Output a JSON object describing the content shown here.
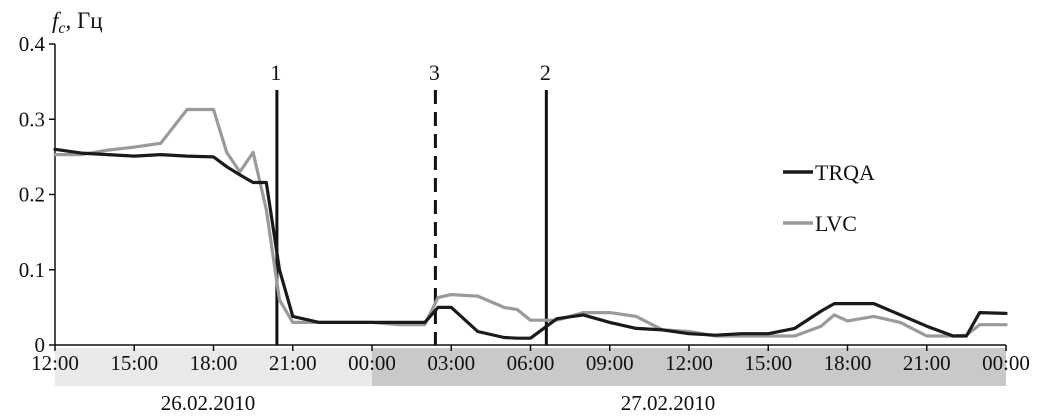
{
  "chart_data": {
    "type": "line",
    "ylabel_symbol": "f",
    "ylabel_sub": "c",
    "ylabel_unit": ", Гц",
    "ylim": [
      0,
      0.4
    ],
    "y_ticks": [
      "0",
      "0.1",
      "0.2",
      "0.3",
      "0.4"
    ],
    "x_ticks": [
      "12:00",
      "15:00",
      "18:00",
      "21:00",
      "00:00",
      "03:00",
      "06:00",
      "09:00",
      "12:00",
      "15:00",
      "18:00",
      "21:00",
      "00:00"
    ],
    "x_range_hours": [
      0,
      36
    ],
    "dates": [
      {
        "label": "26.02.2010",
        "start_h": 0,
        "end_h": 12
      },
      {
        "label": "27.02.2010",
        "start_h": 12,
        "end_h": 36
      }
    ],
    "markers": [
      {
        "label": "1",
        "x_h": 8.4,
        "style": "solid"
      },
      {
        "label": "3",
        "x_h": 14.4,
        "style": "dashed"
      },
      {
        "label": "2",
        "x_h": 18.6,
        "style": "solid"
      }
    ],
    "series": [
      {
        "name": "TRQA",
        "color": "#1a1a1a",
        "x": [
          0,
          1,
          2,
          3,
          4,
          5,
          6,
          6.5,
          7,
          7.5,
          8,
          8.5,
          9,
          10,
          11,
          12,
          13,
          14,
          14.5,
          15,
          16,
          17,
          17.5,
          18,
          19,
          20,
          21,
          22,
          23,
          24,
          25,
          26,
          27,
          28,
          29,
          29.5,
          30,
          31,
          32,
          33,
          34,
          34.5,
          35,
          36
        ],
        "y": [
          0.26,
          0.255,
          0.253,
          0.251,
          0.253,
          0.251,
          0.25,
          0.237,
          0.226,
          0.216,
          0.216,
          0.1,
          0.038,
          0.03,
          0.03,
          0.03,
          0.03,
          0.03,
          0.05,
          0.05,
          0.018,
          0.01,
          0.009,
          0.009,
          0.035,
          0.04,
          0.03,
          0.022,
          0.02,
          0.015,
          0.013,
          0.015,
          0.015,
          0.022,
          0.045,
          0.055,
          0.055,
          0.055,
          0.04,
          0.025,
          0.012,
          0.012,
          0.043,
          0.042
        ]
      },
      {
        "name": "LVC",
        "color": "#9a9a9a",
        "x": [
          0,
          1,
          2,
          3,
          4,
          5,
          6,
          6.5,
          7,
          7.5,
          8,
          8.5,
          9,
          10,
          11,
          12,
          13,
          14,
          14.5,
          15,
          16,
          17,
          17.5,
          18,
          19,
          20,
          21,
          22,
          23,
          24,
          25,
          26,
          27,
          28,
          29,
          29.5,
          30,
          31,
          32,
          33,
          34,
          34.5,
          35,
          36
        ],
        "y": [
          0.253,
          0.253,
          0.259,
          0.263,
          0.268,
          0.313,
          0.313,
          0.256,
          0.23,
          0.256,
          0.18,
          0.06,
          0.03,
          0.03,
          0.03,
          0.03,
          0.027,
          0.027,
          0.063,
          0.067,
          0.065,
          0.05,
          0.047,
          0.033,
          0.033,
          0.043,
          0.043,
          0.038,
          0.02,
          0.018,
          0.012,
          0.012,
          0.012,
          0.012,
          0.025,
          0.04,
          0.032,
          0.038,
          0.03,
          0.012,
          0.012,
          0.013,
          0.027,
          0.027
        ]
      }
    ]
  }
}
